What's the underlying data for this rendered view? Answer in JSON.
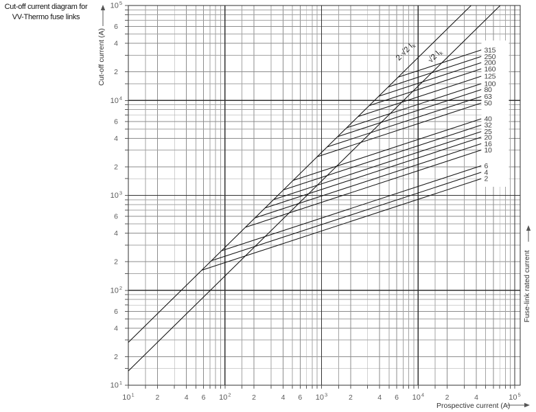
{
  "title": {
    "line1": "Cut-off current diagram for",
    "line2": "VV-Thermo fuse links"
  },
  "chart_data": {
    "type": "line",
    "scale": "log-log",
    "title": "Cut-off current diagram for VV-Thermo fuse links",
    "x_axis": {
      "label": "Prospective current (A)",
      "min": 10,
      "max": 100000,
      "decades": [
        1,
        2,
        3,
        4,
        5
      ],
      "minor_labels": {
        "1": [
          2,
          4,
          6
        ],
        "2": [
          2,
          4,
          6
        ],
        "3": [
          2,
          4,
          6
        ],
        "4": [
          2,
          4
        ]
      },
      "tick_labels_visible": [
        "10¹",
        "2",
        "4",
        "6",
        "10²",
        "2",
        "4",
        "6",
        "10³",
        "2",
        "4",
        "6",
        "10⁴",
        "2",
        "4",
        "10⁵"
      ]
    },
    "y_axis": {
      "label": "Cut-off current (A)",
      "min": 10,
      "max": 100000,
      "decades": [
        1,
        2,
        3,
        4,
        5
      ],
      "minor_labels": {
        "1": [
          2,
          4,
          6
        ],
        "2": [
          2,
          4,
          6
        ],
        "3": [
          2,
          4,
          6
        ],
        "4": [
          2,
          4,
          6
        ]
      },
      "tick_labels_visible": [
        "10⁵",
        "6",
        "4",
        "2",
        "10⁴",
        "6",
        "4",
        "2",
        "10³",
        "6",
        "4",
        "2",
        "10²",
        "6",
        "4",
        "2",
        "10¹"
      ]
    },
    "right_axis_label": "Fuse-link rated current",
    "grid": {
      "on": true,
      "minor_per_decade": [
        1.5,
        2,
        3,
        4,
        5,
        6,
        7,
        8,
        9
      ],
      "emphasized_minors": [
        2,
        4,
        6
      ]
    },
    "reference_lines": [
      {
        "label": "2·√2·Ik",
        "label_main": "2·√2 I",
        "label_sub": "k",
        "factor": 2.8284
      },
      {
        "label": "√2·Ik",
        "label_main": "√2 I",
        "label_sub": "k",
        "factor": 1.4142
      }
    ],
    "fuse_curves": {
      "slope_loglog": 0.3333,
      "start_on_reference_factor": 2.8284,
      "end_prospective_A": 45000,
      "series": [
        {
          "rating_A": 315,
          "cutoff_at_end_A": 34000,
          "branch_prospective_A": 6200
        },
        {
          "rating_A": 250,
          "cutoff_at_end_A": 29000,
          "branch_prospective_A": 4900
        },
        {
          "rating_A": 200,
          "cutoff_at_end_A": 25000,
          "branch_prospective_A": 3900
        },
        {
          "rating_A": 160,
          "cutoff_at_end_A": 21500,
          "branch_prospective_A": 3100
        },
        {
          "rating_A": 125,
          "cutoff_at_end_A": 18000,
          "branch_prospective_A": 2400
        },
        {
          "rating_A": 100,
          "cutoff_at_end_A": 15000,
          "branch_prospective_A": 1800
        },
        {
          "rating_A": 80,
          "cutoff_at_end_A": 13000,
          "branch_prospective_A": 1500
        },
        {
          "rating_A": 63,
          "cutoff_at_end_A": 11000,
          "branch_prospective_A": 1140
        },
        {
          "rating_A": 50,
          "cutoff_at_end_A": 9400,
          "branch_prospective_A": 900
        },
        {
          "rating_A": 40,
          "cutoff_at_end_A": 6400,
          "branch_prospective_A": 510
        },
        {
          "rating_A": 32,
          "cutoff_at_end_A": 5500,
          "branch_prospective_A": 400
        },
        {
          "rating_A": 25,
          "cutoff_at_end_A": 4700,
          "branch_prospective_A": 320
        },
        {
          "rating_A": 20,
          "cutoff_at_end_A": 4100,
          "branch_prospective_A": 260
        },
        {
          "rating_A": 16,
          "cutoff_at_end_A": 3500,
          "branch_prospective_A": 205
        },
        {
          "rating_A": 10,
          "cutoff_at_end_A": 3000,
          "branch_prospective_A": 163
        },
        {
          "rating_A": 6,
          "cutoff_at_end_A": 2050,
          "branch_prospective_A": 92
        },
        {
          "rating_A": 4,
          "cutoff_at_end_A": 1750,
          "branch_prospective_A": 73
        },
        {
          "rating_A": 2,
          "cutoff_at_end_A": 1500,
          "branch_prospective_A": 58
        }
      ]
    },
    "colors": {
      "curve": "#111111",
      "grid_minor": "#a3a3a3",
      "grid_minor_emph": "#8b8b8b",
      "grid_major": "#2f2f2f",
      "tick_text": "#5a5a5a",
      "rating_text": "#3f3f3f",
      "axis_title": "#333333"
    }
  }
}
